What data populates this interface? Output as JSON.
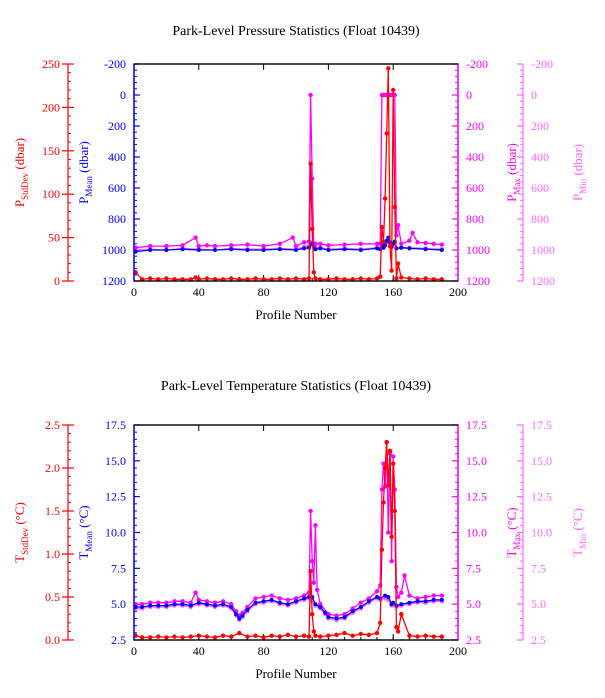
{
  "colors": {
    "stddev": "#ff0000",
    "mean": "#0000ff",
    "max": "#ff00ff",
    "min": "#ff66ff",
    "frame": "#000000"
  },
  "chart_data": [
    {
      "type": "line",
      "title": "Park-Level Pressure Statistics (Float 10439)",
      "xlabel": "Profile Number",
      "xlim": [
        0,
        200
      ],
      "xticks": [
        "0",
        "40",
        "80",
        "120",
        "160",
        "200"
      ],
      "axes": {
        "stddev": {
          "label_main": "P",
          "label_sub": "StdDev",
          "label_unit": " (dbar)",
          "lim": [
            0,
            250
          ],
          "ticks": [
            "0",
            "50",
            "100",
            "150",
            "200",
            "250"
          ]
        },
        "mean": {
          "label_main": "P",
          "label_sub": "Mean",
          "label_unit": " (dbar)",
          "lim": [
            1200,
            -200
          ],
          "ticks": [
            "-200",
            "0",
            "200",
            "400",
            "600",
            "800",
            "1000",
            "1200"
          ]
        },
        "max": {
          "label_main": "P",
          "label_sub": "Max",
          "label_unit": " (dbar)",
          "lim": [
            1200,
            -200
          ],
          "ticks": [
            "-200",
            "0",
            "200",
            "400",
            "600",
            "800",
            "1000",
            "1200"
          ]
        },
        "min": {
          "label_main": "P",
          "label_sub": "Min",
          "label_unit": " (dbar)",
          "lim": [
            1200,
            -200
          ],
          "ticks": [
            "-200",
            "0",
            "200",
            "400",
            "600",
            "800",
            "1000",
            "1200"
          ]
        }
      },
      "series": {
        "stddev": {
          "x": [
            1,
            5,
            10,
            15,
            20,
            25,
            30,
            35,
            38,
            40,
            45,
            50,
            55,
            60,
            65,
            70,
            75,
            80,
            85,
            90,
            95,
            100,
            105,
            108,
            109,
            110,
            111,
            112,
            115,
            120,
            125,
            130,
            135,
            140,
            145,
            150,
            152,
            153,
            154,
            155,
            156,
            157,
            158,
            159,
            160,
            161,
            162,
            163,
            165,
            170,
            175,
            180,
            185,
            190
          ],
          "y": [
            10,
            2,
            3,
            2,
            3,
            2,
            2,
            2,
            4,
            2,
            3,
            2,
            2,
            3,
            2,
            2,
            3,
            2,
            2,
            3,
            2,
            3,
            2,
            3,
            135,
            60,
            10,
            3,
            2,
            2,
            3,
            2,
            2,
            3,
            2,
            3,
            5,
            62,
            45,
            95,
            170,
            245,
            40,
            12,
            220,
            85,
            3,
            20,
            4,
            3,
            2,
            3,
            2,
            2
          ]
        },
        "mean": {
          "x": [
            1,
            10,
            20,
            30,
            40,
            50,
            60,
            70,
            80,
            90,
            100,
            105,
            108,
            110,
            112,
            115,
            120,
            130,
            140,
            150,
            152,
            153,
            154,
            155,
            156,
            157,
            158,
            159,
            160,
            161,
            162,
            165,
            170,
            180,
            190
          ],
          "y": [
            1010,
            1000,
            1000,
            995,
            1000,
            1000,
            995,
            1000,
            1000,
            995,
            1000,
            990,
            985,
            960,
            995,
            990,
            1000,
            995,
            1000,
            990,
            995,
            960,
            985,
            970,
            940,
            920,
            950,
            980,
            960,
            945,
            990,
            985,
            990,
            995,
            1000
          ]
        },
        "max": {
          "x": [
            1,
            10,
            20,
            30,
            38,
            40,
            45,
            50,
            60,
            70,
            80,
            90,
            98,
            100,
            105,
            108,
            109,
            110,
            111,
            112,
            115,
            120,
            130,
            140,
            150,
            152,
            153,
            154,
            155,
            156,
            157,
            158,
            159,
            160,
            161,
            162,
            163,
            165,
            170,
            172,
            175,
            180,
            185,
            190
          ],
          "y": [
            985,
            975,
            975,
            970,
            920,
            975,
            970,
            975,
            970,
            965,
            975,
            960,
            920,
            975,
            950,
            945,
            0,
            540,
            975,
            960,
            960,
            970,
            965,
            960,
            960,
            960,
            0,
            0,
            0,
            0,
            0,
            0,
            0,
            0,
            0,
            905,
            840,
            960,
            940,
            890,
            950,
            955,
            960,
            965
          ]
        },
        "min": {
          "x": [
            1,
            10,
            20,
            30,
            40,
            50,
            60,
            70,
            80,
            90,
            100,
            105,
            108,
            110,
            112,
            115,
            120,
            130,
            140,
            150,
            152,
            153,
            154,
            155,
            156,
            157,
            158,
            159,
            160,
            161,
            162,
            165,
            170,
            180,
            190
          ],
          "y": [
            1000,
            995,
            1000,
            990,
            995,
            1000,
            990,
            995,
            995,
            990,
            995,
            980,
            975,
            950,
            985,
            985,
            995,
            990,
            995,
            985,
            990,
            965,
            980,
            970,
            950,
            935,
            960,
            980,
            965,
            955,
            990,
            985,
            985,
            990,
            995
          ]
        }
      }
    },
    {
      "type": "line",
      "title": "Park-Level Temperature Statistics (Float 10439)",
      "xlabel": "Profile Number",
      "xlim": [
        0,
        200
      ],
      "xticks": [
        "0",
        "40",
        "80",
        "120",
        "160",
        "200"
      ],
      "axes": {
        "stddev": {
          "label_main": "T",
          "label_sub": "StdDev",
          "label_unit": " (°C)",
          "lim": [
            0,
            2.5
          ],
          "ticks": [
            "0.0",
            "0.5",
            "1.0",
            "1.5",
            "2.0",
            "2.5"
          ]
        },
        "mean": {
          "label_main": "T",
          "label_sub": "Mean",
          "label_unit": " (°C)",
          "lim": [
            2.5,
            17.5
          ],
          "ticks": [
            "2.5",
            "5.0",
            "7.5",
            "10.0",
            "12.5",
            "15.0",
            "17.5"
          ]
        },
        "max": {
          "label_main": "T",
          "label_sub": "Max",
          "label_unit": " (°C)",
          "lim": [
            2.5,
            17.5
          ],
          "ticks": [
            "2.5",
            "5.0",
            "7.5",
            "10.0",
            "12.5",
            "15.0",
            "17.5"
          ]
        },
        "min": {
          "label_main": "T",
          "label_sub": "Min",
          "label_unit": " (°C)",
          "lim": [
            2.5,
            17.5
          ],
          "ticks": [
            "2.5",
            "5.0",
            "7.5",
            "10.0",
            "12.5",
            "15.0",
            "17.5"
          ]
        }
      },
      "series": {
        "stddev": {
          "x": [
            1,
            5,
            10,
            15,
            20,
            25,
            30,
            35,
            40,
            45,
            50,
            55,
            60,
            65,
            70,
            75,
            80,
            85,
            90,
            95,
            100,
            105,
            108,
            109,
            110,
            111,
            112,
            115,
            120,
            125,
            130,
            135,
            140,
            145,
            150,
            152,
            153,
            154,
            155,
            156,
            157,
            158,
            159,
            160,
            161,
            162,
            163,
            165,
            170,
            175,
            180,
            185,
            190
          ],
          "y": [
            0.05,
            0.03,
            0.03,
            0.04,
            0.03,
            0.04,
            0.03,
            0.04,
            0.05,
            0.04,
            0.03,
            0.05,
            0.04,
            0.08,
            0.04,
            0.05,
            0.03,
            0.05,
            0.04,
            0.06,
            0.04,
            0.05,
            0.04,
            0.8,
            0.3,
            0.1,
            0.05,
            0.04,
            0.05,
            0.06,
            0.08,
            0.05,
            0.07,
            0.06,
            0.08,
            0.2,
            1.05,
            1.6,
            2.0,
            2.3,
            1.8,
            2.2,
            1.2,
            2.05,
            1.5,
            0.15,
            0.1,
            0.3,
            0.05,
            0.04,
            0.05,
            0.04,
            0.04
          ]
        },
        "mean": {
          "x": [
            1,
            5,
            10,
            15,
            20,
            25,
            30,
            35,
            40,
            45,
            50,
            55,
            60,
            63,
            65,
            67,
            70,
            75,
            80,
            85,
            90,
            95,
            100,
            105,
            108,
            110,
            112,
            115,
            118,
            120,
            125,
            130,
            135,
            140,
            145,
            150,
            152,
            155,
            157,
            159,
            160,
            162,
            165,
            170,
            175,
            180,
            185,
            190
          ],
          "y": [
            4.8,
            4.8,
            4.9,
            4.9,
            4.9,
            5.0,
            5.0,
            4.9,
            5.1,
            5.0,
            4.9,
            5.0,
            4.8,
            4.3,
            4.0,
            4.2,
            4.6,
            5.1,
            5.2,
            5.3,
            5.1,
            5.0,
            5.2,
            5.4,
            5.5,
            5.5,
            5.0,
            4.8,
            4.4,
            4.1,
            4.0,
            4.1,
            4.5,
            4.8,
            5.2,
            5.5,
            5.4,
            5.6,
            5.5,
            5.0,
            5.1,
            4.9,
            5.0,
            5.1,
            5.2,
            5.2,
            5.3,
            5.3
          ]
        },
        "max": {
          "x": [
            1,
            5,
            10,
            15,
            20,
            25,
            30,
            35,
            38,
            40,
            45,
            50,
            55,
            60,
            63,
            65,
            67,
            70,
            75,
            80,
            85,
            90,
            95,
            100,
            105,
            108,
            109,
            110,
            111,
            112,
            113,
            115,
            120,
            125,
            130,
            135,
            140,
            145,
            150,
            152,
            153,
            154,
            155,
            156,
            157,
            158,
            159,
            160,
            161,
            162,
            163,
            165,
            167,
            170,
            175,
            180,
            185,
            190
          ],
          "y": [
            5.0,
            5.0,
            5.1,
            5.1,
            5.1,
            5.2,
            5.2,
            5.1,
            5.8,
            5.3,
            5.2,
            5.1,
            5.2,
            5.0,
            4.5,
            4.2,
            4.4,
            4.8,
            5.4,
            5.5,
            5.6,
            5.4,
            5.3,
            5.4,
            5.6,
            5.8,
            11.5,
            8.0,
            6.5,
            10.5,
            6.0,
            5.0,
            4.3,
            4.2,
            4.3,
            4.7,
            5.1,
            5.4,
            5.9,
            6.3,
            13.0,
            14.8,
            13.2,
            16.3,
            10.0,
            15.5,
            8.0,
            15.3,
            13.0,
            6.2,
            5.5,
            5.8,
            7.0,
            5.6,
            5.4,
            5.5,
            5.6,
            5.6
          ]
        },
        "min": {
          "x": [
            1,
            5,
            10,
            15,
            20,
            25,
            30,
            35,
            40,
            45,
            50,
            55,
            60,
            63,
            65,
            67,
            70,
            75,
            80,
            85,
            90,
            95,
            100,
            105,
            108,
            110,
            112,
            115,
            118,
            120,
            125,
            130,
            135,
            140,
            145,
            150,
            152,
            155,
            157,
            159,
            160,
            162,
            165,
            170,
            175,
            180,
            185,
            190
          ],
          "y": [
            4.7,
            4.7,
            4.8,
            4.8,
            4.8,
            4.9,
            4.9,
            4.8,
            5.0,
            4.9,
            4.8,
            4.9,
            4.7,
            4.2,
            3.9,
            4.1,
            4.5,
            5.0,
            5.1,
            5.2,
            5.0,
            4.9,
            5.1,
            5.3,
            5.4,
            5.2,
            4.9,
            4.7,
            4.3,
            4.0,
            3.9,
            4.0,
            4.4,
            4.7,
            5.1,
            5.4,
            5.3,
            5.4,
            5.3,
            4.9,
            5.0,
            4.8,
            4.9,
            5.0,
            5.1,
            5.1,
            5.2,
            5.2
          ]
        }
      }
    }
  ]
}
